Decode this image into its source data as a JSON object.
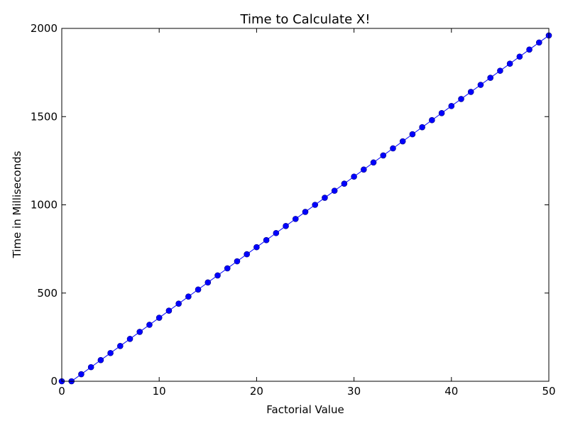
{
  "chart_data": {
    "type": "line",
    "title": "Time to Calculate X!",
    "xlabel": "Factorial Value",
    "ylabel": "Time in Milliseconds",
    "xlim": [
      0,
      50
    ],
    "ylim": [
      0,
      2000
    ],
    "xticks": [
      0,
      10,
      20,
      30,
      40,
      50
    ],
    "yticks": [
      0,
      500,
      1000,
      1500,
      2000
    ],
    "grid": false,
    "series": [
      {
        "color": "#0000ff",
        "marker": "circle",
        "x": [
          0,
          1,
          2,
          3,
          4,
          5,
          6,
          7,
          8,
          9,
          10,
          11,
          12,
          13,
          14,
          15,
          16,
          17,
          18,
          19,
          20,
          21,
          22,
          23,
          24,
          25,
          26,
          27,
          28,
          29,
          30,
          31,
          32,
          33,
          34,
          35,
          36,
          37,
          38,
          39,
          40,
          41,
          42,
          43,
          44,
          45,
          46,
          47,
          48,
          49,
          50
        ],
        "y": [
          0,
          0,
          40,
          80,
          120,
          160,
          200,
          240,
          280,
          320,
          360,
          400,
          440,
          480,
          520,
          560,
          600,
          640,
          680,
          720,
          760,
          800,
          840,
          880,
          920,
          960,
          1000,
          1040,
          1080,
          1120,
          1160,
          1200,
          1240,
          1280,
          1320,
          1360,
          1400,
          1440,
          1480,
          1520,
          1560,
          1600,
          1640,
          1680,
          1720,
          1760,
          1800,
          1840,
          1880,
          1920,
          1960
        ]
      }
    ]
  }
}
